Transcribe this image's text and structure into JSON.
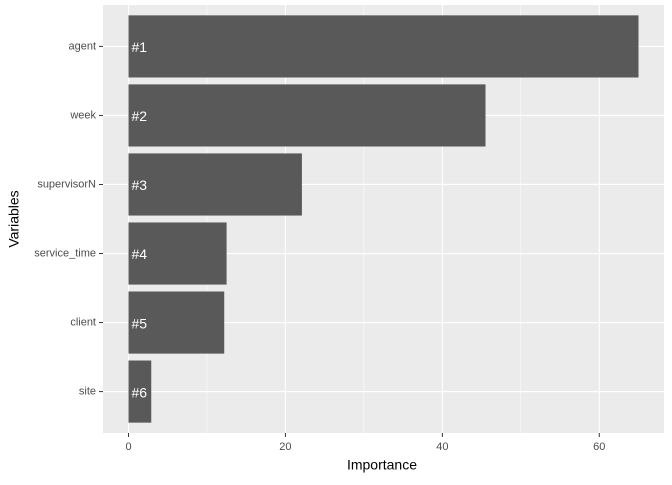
{
  "chart_data": {
    "type": "barh",
    "x_label": "Importance",
    "y_label": "Variables",
    "categories": [
      "agent",
      "week",
      "supervisorN",
      "service_time",
      "client",
      "site"
    ],
    "values": [
      65,
      45.5,
      22.1,
      12.5,
      12.2,
      2.9
    ],
    "bar_labels": [
      "#1",
      "#2",
      "#3",
      "#4",
      "#5",
      "#6"
    ],
    "color": "#595959",
    "xlim": [
      -3.25,
      68.25
    ],
    "xticks": [
      0,
      20,
      40,
      60
    ],
    "xminor": [
      10,
      30,
      50
    ],
    "grid": true
  }
}
